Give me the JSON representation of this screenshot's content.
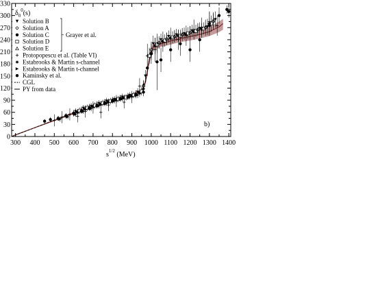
{
  "chart_data": {
    "type": "scatter",
    "title": "",
    "panel_label": "b)",
    "ylabel": "δ0 0(s)",
    "xlabel": "s 1/2 (MeV)",
    "y_axis_label": {
      "base": "δ",
      "sub": "0",
      "sup": "0",
      "tail": "(s)"
    },
    "x_axis_label": {
      "base": "s",
      "sup": "1/2",
      "tail": " (MeV)"
    },
    "xlim": [
      280,
      1410
    ],
    "ylim": [
      0,
      330
    ],
    "x_ticks": [
      300,
      400,
      500,
      600,
      700,
      800,
      900,
      1000,
      1100,
      1200,
      1300,
      1400
    ],
    "y_ticks": [
      0,
      30,
      60,
      90,
      120,
      150,
      180,
      210,
      240,
      270,
      300,
      330
    ],
    "x_tick_labels": [
      "300",
      "400",
      "500",
      "600",
      "700",
      "800",
      "900",
      "1000",
      "1100",
      "1200",
      "1300",
      "1400"
    ],
    "y_tick_labels": [
      "0",
      "30",
      "60",
      "90",
      "120",
      "150",
      "180",
      "210",
      "240",
      "270",
      "300",
      "330"
    ],
    "legend_position": "top-left",
    "legend": [
      {
        "label": "Solution B",
        "marker": "tri-down"
      },
      {
        "label": "Solution A",
        "marker": "diamond-open"
      },
      {
        "label": "Solution C",
        "marker": "circle-filled"
      },
      {
        "label": "Solution D",
        "marker": "square-open"
      },
      {
        "label": "Solution E",
        "marker": "tri-up"
      },
      {
        "label": "Protopopescu et al.  (Table VI)",
        "marker": "cross"
      },
      {
        "label": "Estabrooks & Martin s-channel",
        "marker": "star"
      },
      {
        "label": "Estabrooks & Martin t-channel",
        "marker": "tri-right"
      },
      {
        "label": "Kaminsky et al.",
        "marker": "circle-filled"
      },
      {
        "label": "CGL",
        "marker": "dashed-line"
      },
      {
        "label": "PY from data",
        "marker": "solid-line"
      }
    ],
    "legend_group_label": "Grayer et al.",
    "colors": {
      "band": "#b07a7a",
      "curve": "#7a3030",
      "points": "#000000"
    },
    "series": [
      {
        "name": "PY from data",
        "type": "band",
        "x": [
          280,
          300,
          400,
          500,
          600,
          700,
          800,
          850,
          900,
          950,
          970,
          990,
          1000,
          1010,
          1050,
          1100,
          1150,
          1200,
          1250,
          1300,
          1350,
          1370
        ],
        "y": [
          0,
          4,
          22,
          40,
          58,
          74,
          88,
          95,
          103,
          112,
          135,
          190,
          210,
          222,
          230,
          237,
          243,
          248,
          253,
          260,
          272,
          280
        ],
        "lower": [
          0,
          4,
          21,
          38,
          55,
          71,
          85,
          92,
          100,
          108,
          128,
          180,
          200,
          214,
          222,
          228,
          234,
          238,
          243,
          249,
          259,
          265
        ],
        "upper": [
          0,
          5,
          23,
          42,
          61,
          77,
          91,
          98,
          106,
          116,
          142,
          200,
          220,
          230,
          238,
          246,
          252,
          258,
          263,
          271,
          285,
          292
        ]
      },
      {
        "name": "Solution B",
        "marker": "tri-down",
        "x": [
          610,
          650,
          690,
          730,
          770,
          810,
          850,
          890,
          930,
          970,
          1010,
          1050,
          1090,
          1130,
          1170,
          1210,
          1250,
          1290,
          1330
        ],
        "y": [
          62,
          70,
          75,
          82,
          88,
          92,
          98,
          102,
          110,
          150,
          230,
          240,
          248,
          252,
          255,
          262,
          268,
          272,
          290
        ],
        "err": [
          8,
          8,
          8,
          8,
          8,
          8,
          8,
          8,
          10,
          15,
          20,
          15,
          15,
          15,
          15,
          15,
          15,
          20,
          20
        ]
      },
      {
        "name": "Solution A",
        "marker": "diamond-open",
        "x": [
          600,
          640,
          680,
          720,
          760,
          800,
          840,
          880,
          920,
          960,
          1000,
          1040,
          1080,
          1120,
          1160,
          1200,
          1240,
          1280,
          1320
        ],
        "y": [
          58,
          65,
          72,
          78,
          84,
          90,
          95,
          100,
          105,
          125,
          215,
          232,
          242,
          248,
          252,
          258,
          265,
          270,
          285
        ],
        "err": [
          8,
          8,
          8,
          8,
          8,
          8,
          8,
          8,
          10,
          15,
          20,
          15,
          15,
          15,
          15,
          15,
          15,
          20,
          20
        ]
      },
      {
        "name": "Solution C",
        "marker": "circle-filled",
        "x": [
          620,
          660,
          700,
          740,
          780,
          820,
          860,
          900,
          940,
          980,
          1020,
          1060,
          1100,
          1140,
          1180,
          1220,
          1260,
          1300
        ],
        "y": [
          60,
          68,
          74,
          80,
          86,
          91,
          96,
          100,
          108,
          170,
          225,
          236,
          244,
          250,
          253,
          260,
          266,
          275
        ],
        "err": [
          8,
          8,
          8,
          8,
          8,
          8,
          8,
          8,
          10,
          20,
          20,
          15,
          15,
          15,
          15,
          15,
          15,
          20
        ]
      },
      {
        "name": "Solution D",
        "marker": "square-open",
        "x": [
          630,
          670,
          710,
          750,
          790,
          830,
          870,
          910,
          950,
          990,
          1030,
          1070,
          1110,
          1150,
          1190,
          1230,
          1270,
          1310
        ],
        "y": [
          64,
          71,
          77,
          83,
          88,
          93,
          97,
          103,
          112,
          200,
          228,
          238,
          246,
          250,
          256,
          262,
          268,
          280
        ],
        "err": [
          8,
          8,
          8,
          8,
          8,
          8,
          8,
          8,
          10,
          20,
          20,
          15,
          15,
          15,
          15,
          15,
          15,
          20
        ]
      },
      {
        "name": "Solution E",
        "marker": "tri-up",
        "x": [
          640,
          680,
          720,
          760,
          800,
          840,
          880,
          920,
          960,
          1000,
          1040,
          1080,
          1120,
          1160,
          1200,
          1240,
          1280,
          1320
        ],
        "y": [
          66,
          73,
          79,
          85,
          90,
          95,
          99,
          106,
          128,
          210,
          234,
          243,
          249,
          254,
          259,
          266,
          272,
          288
        ],
        "err": [
          8,
          8,
          8,
          8,
          8,
          8,
          8,
          8,
          10,
          20,
          15,
          15,
          15,
          15,
          15,
          15,
          15,
          20
        ]
      },
      {
        "name": "Protopopescu et al.  (Table VI)",
        "marker": "cross",
        "x": [
          500,
          540,
          580,
          620,
          660,
          700,
          740,
          780,
          820,
          860,
          900,
          940,
          980,
          1020,
          1060,
          1100,
          1140,
          1180,
          1220,
          1260,
          1300,
          1340
        ],
        "y": [
          40,
          48,
          55,
          50,
          62,
          72,
          60,
          78,
          88,
          85,
          98,
          125,
          200,
          215,
          235,
          245,
          240,
          250,
          265,
          270,
          285,
          275
        ],
        "err": [
          15,
          15,
          15,
          15,
          15,
          15,
          15,
          15,
          15,
          15,
          15,
          20,
          30,
          30,
          25,
          25,
          25,
          25,
          25,
          25,
          25,
          25
        ]
      },
      {
        "name": "Estabrooks & Martin s-channel",
        "marker": "star",
        "x": [
          520,
          560,
          600,
          640,
          680,
          720,
          760,
          800,
          840,
          880,
          920,
          960
        ],
        "y": [
          45,
          50,
          56,
          63,
          70,
          77,
          84,
          90,
          94,
          99,
          104,
          118
        ],
        "err": [
          6,
          6,
          6,
          6,
          6,
          6,
          6,
          6,
          6,
          6,
          8,
          10
        ]
      },
      {
        "name": "Estabrooks & Martin t-channel",
        "marker": "tri-right",
        "x": [
          530,
          570,
          610,
          650,
          690,
          730,
          770,
          810,
          850,
          890,
          930
        ],
        "y": [
          43,
          49,
          55,
          62,
          69,
          76,
          82,
          88,
          93,
          98,
          103
        ],
        "err": [
          6,
          6,
          6,
          6,
          6,
          6,
          6,
          6,
          6,
          6,
          8
        ]
      },
      {
        "name": "Kaminsky et al.",
        "marker": "circle-filled",
        "x": [
          450,
          480,
          520,
          560,
          600,
          640,
          680,
          720,
          760,
          800,
          840,
          880,
          920,
          960,
          1000,
          1030,
          1050,
          1100,
          1150,
          1200,
          1250,
          1300,
          1350,
          1390,
          1400
        ],
        "y": [
          38,
          42,
          45,
          52,
          58,
          63,
          70,
          76,
          82,
          88,
          94,
          98,
          103,
          110,
          205,
          185,
          190,
          215,
          230,
          215,
          240,
          280,
          300,
          315,
          310
        ],
        "err": [
          5,
          6,
          6,
          6,
          6,
          6,
          6,
          6,
          6,
          6,
          6,
          6,
          8,
          10,
          25,
          70,
          30,
          30,
          30,
          30,
          30,
          30,
          20,
          10,
          15
        ]
      }
    ],
    "cgl_curve": {
      "x": [
        280,
        400,
        500,
        600,
        700,
        800,
        900,
        950,
        970,
        990,
        1000
      ],
      "y": [
        0,
        22,
        40,
        58,
        74,
        88,
        103,
        112,
        135,
        190,
        210
      ]
    }
  }
}
